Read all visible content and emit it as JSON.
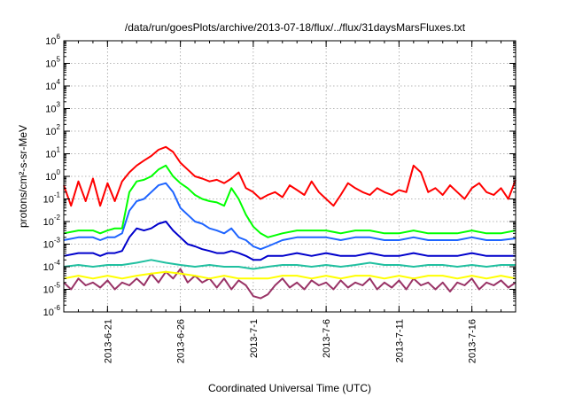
{
  "chart_data": {
    "type": "line",
    "title": "/data/run/goesPlots/archive/2013-07-18/flux/../flux/31daysMarsFluxes.txt",
    "xlabel": "Coordinated Universal Time (UTC)",
    "ylabel": "protons/cm²-s-sr-MeV",
    "yscale": "log",
    "ylim": [
      1e-06,
      1000000.0
    ],
    "xlim": [
      0,
      31
    ],
    "x_unit": "days since 2013-06-18",
    "x_ticks": [
      {
        "x": 3,
        "label": "2013-6-21"
      },
      {
        "x": 8,
        "label": "2013-6-26"
      },
      {
        "x": 13,
        "label": "2013-7-1"
      },
      {
        "x": 18,
        "label": "2013-7-6"
      },
      {
        "x": 23,
        "label": "2013-7-11"
      },
      {
        "x": 28,
        "label": "2013-7-16"
      }
    ],
    "y_ticks": [
      {
        "base": "10",
        "exp": "6",
        "value": 1000000.0
      },
      {
        "base": "10",
        "exp": "5",
        "value": 100000.0
      },
      {
        "base": "10",
        "exp": "4",
        "value": 10000.0
      },
      {
        "base": "10",
        "exp": "3",
        "value": 1000.0
      },
      {
        "base": "10",
        "exp": "2",
        "value": 100.0
      },
      {
        "base": "10",
        "exp": "1",
        "value": 10.0
      },
      {
        "base": "10",
        "exp": "0",
        "value": 1
      },
      {
        "base": "10",
        "exp": "-1",
        "value": 0.1
      },
      {
        "base": "10",
        "exp": "-2",
        "value": 0.01
      },
      {
        "base": "10",
        "exp": "-3",
        "value": 0.001
      },
      {
        "base": "10",
        "exp": "-4",
        "value": 0.0001
      },
      {
        "base": "10",
        "exp": "-5",
        "value": 1e-05
      },
      {
        "base": "10",
        "exp": "-6",
        "value": 1e-06
      }
    ],
    "grid": true,
    "series": [
      {
        "color": "#ff0000",
        "x": [
          0,
          0.5,
          1,
          1.5,
          2,
          2.5,
          3,
          3.5,
          4,
          4.5,
          5,
          5.5,
          6,
          6.5,
          7,
          7.5,
          8,
          8.5,
          9,
          9.5,
          10,
          10.5,
          11,
          11.5,
          12,
          12.5,
          13,
          13.5,
          14,
          14.5,
          15,
          15.5,
          16,
          16.5,
          17,
          17.5,
          18,
          18.5,
          19,
          19.5,
          20,
          20.5,
          21,
          21.5,
          22,
          22.5,
          23,
          23.5,
          24,
          24.5,
          25,
          25.5,
          26,
          26.5,
          27,
          27.5,
          28,
          28.5,
          29,
          29.5,
          30,
          30.5,
          31
        ],
        "y": [
          0.4,
          0.05,
          0.6,
          0.08,
          0.8,
          0.05,
          0.5,
          0.08,
          0.6,
          1.5,
          3,
          5,
          8,
          15,
          20,
          12,
          4,
          2,
          1,
          0.8,
          0.6,
          0.7,
          0.5,
          0.8,
          1.5,
          0.3,
          0.2,
          0.1,
          0.15,
          0.2,
          0.12,
          0.4,
          0.25,
          0.15,
          0.6,
          0.2,
          0.1,
          0.05,
          0.15,
          0.5,
          0.3,
          0.2,
          0.15,
          0.3,
          0.2,
          0.15,
          0.25,
          0.2,
          3,
          1.5,
          0.2,
          0.3,
          0.15,
          0.4,
          0.2,
          0.1,
          0.3,
          0.5,
          0.2,
          0.15,
          0.3,
          0.1,
          0.7
        ]
      },
      {
        "color": "#00ff00",
        "x": [
          0,
          1,
          2,
          2.5,
          3,
          3.5,
          4,
          4.5,
          5,
          5.5,
          6,
          6.5,
          7,
          7.5,
          8,
          8.5,
          9,
          9.5,
          10,
          10.5,
          11,
          11.5,
          12,
          12.5,
          13,
          13.5,
          14,
          15,
          16,
          17,
          18,
          19,
          20,
          21,
          22,
          23,
          24,
          25,
          26,
          27,
          28,
          29,
          30,
          31
        ],
        "y": [
          0.003,
          0.004,
          0.004,
          0.003,
          0.004,
          0.005,
          0.005,
          0.2,
          0.6,
          0.7,
          1,
          2,
          3,
          1,
          0.5,
          0.3,
          0.15,
          0.1,
          0.08,
          0.07,
          0.05,
          0.3,
          0.1,
          0.02,
          0.006,
          0.003,
          0.002,
          0.003,
          0.004,
          0.004,
          0.004,
          0.003,
          0.004,
          0.004,
          0.003,
          0.003,
          0.004,
          0.003,
          0.003,
          0.003,
          0.004,
          0.003,
          0.003,
          0.004
        ]
      },
      {
        "color": "#1e64ff",
        "x": [
          0,
          1,
          2,
          2.5,
          3,
          3.5,
          4,
          4.5,
          5,
          5.5,
          6,
          6.5,
          7,
          7.5,
          8,
          8.5,
          9,
          9.5,
          10,
          10.5,
          11,
          11.5,
          12,
          12.5,
          13,
          13.5,
          14,
          15,
          16,
          17,
          18,
          19,
          20,
          21,
          22,
          23,
          24,
          25,
          26,
          27,
          28,
          29,
          30,
          31
        ],
        "y": [
          0.0015,
          0.002,
          0.002,
          0.0015,
          0.002,
          0.002,
          0.003,
          0.03,
          0.08,
          0.1,
          0.2,
          0.4,
          0.5,
          0.2,
          0.04,
          0.02,
          0.01,
          0.008,
          0.005,
          0.004,
          0.003,
          0.005,
          0.002,
          0.0015,
          0.0008,
          0.0006,
          0.0008,
          0.0015,
          0.002,
          0.002,
          0.002,
          0.0015,
          0.002,
          0.002,
          0.0015,
          0.0015,
          0.002,
          0.0015,
          0.0015,
          0.0015,
          0.002,
          0.0015,
          0.0015,
          0.0018
        ]
      },
      {
        "color": "#0000cc",
        "x": [
          0,
          1,
          2,
          2.5,
          3,
          3.5,
          4,
          4.5,
          5,
          5.5,
          6,
          6.5,
          7,
          7.5,
          8,
          8.5,
          9,
          9.5,
          10,
          10.5,
          11,
          11.5,
          12,
          12.5,
          13,
          13.5,
          14,
          15,
          16,
          17,
          18,
          19,
          20,
          21,
          22,
          23,
          24,
          25,
          26,
          27,
          28,
          29,
          30,
          31
        ],
        "y": [
          0.0003,
          0.0004,
          0.0004,
          0.0003,
          0.0004,
          0.0004,
          0.0005,
          0.002,
          0.005,
          0.004,
          0.005,
          0.008,
          0.01,
          0.004,
          0.002,
          0.001,
          0.0008,
          0.0006,
          0.0005,
          0.0004,
          0.0004,
          0.0005,
          0.0004,
          0.0003,
          0.0002,
          0.0002,
          0.0003,
          0.0003,
          0.0004,
          0.0003,
          0.0004,
          0.0003,
          0.0003,
          0.0004,
          0.0003,
          0.0003,
          0.0004,
          0.0003,
          0.0003,
          0.0003,
          0.0004,
          0.0003,
          0.0003,
          0.0003
        ]
      },
      {
        "color": "#20c0a0",
        "x": [
          0,
          1,
          2,
          3,
          4,
          5,
          6,
          7,
          8,
          9,
          10,
          11,
          12,
          13,
          14,
          15,
          16,
          17,
          18,
          19,
          20,
          21,
          22,
          23,
          24,
          25,
          26,
          27,
          28,
          29,
          30,
          31
        ],
        "y": [
          0.0001,
          0.00012,
          0.0001,
          0.00012,
          0.00012,
          0.00015,
          0.0002,
          0.00015,
          0.00012,
          0.0001,
          0.00012,
          0.0001,
          0.0001,
          8e-05,
          0.0001,
          0.00012,
          0.00012,
          0.0001,
          0.00012,
          0.0001,
          0.00012,
          0.00015,
          0.00012,
          0.00012,
          0.0001,
          0.00012,
          0.00012,
          0.0001,
          0.00012,
          0.0001,
          0.00012,
          0.00012
        ]
      },
      {
        "color": "#ffff00",
        "x": [
          0,
          1,
          2,
          3,
          4,
          5,
          6,
          7,
          8,
          9,
          10,
          11,
          12,
          13,
          14,
          15,
          16,
          17,
          18,
          19,
          20,
          21,
          22,
          23,
          24,
          25,
          26,
          27,
          28,
          29,
          30,
          31
        ],
        "y": [
          3e-05,
          4e-05,
          3e-05,
          4e-05,
          3e-05,
          4e-05,
          5e-05,
          6e-05,
          5e-05,
          4e-05,
          3e-05,
          4e-05,
          3e-05,
          3e-05,
          3e-05,
          4e-05,
          4e-05,
          3e-05,
          4e-05,
          3e-05,
          4e-05,
          4e-05,
          3e-05,
          4e-05,
          3e-05,
          4e-05,
          4e-05,
          3e-05,
          4e-05,
          3e-05,
          4e-05,
          3e-05
        ]
      },
      {
        "color": "#993366",
        "x": [
          0,
          0.5,
          1,
          1.5,
          2,
          2.5,
          3,
          3.5,
          4,
          4.5,
          5,
          5.5,
          6,
          6.5,
          7,
          7.5,
          8,
          8.5,
          9,
          9.5,
          10,
          10.5,
          11,
          11.5,
          12,
          12.5,
          13,
          13.5,
          14,
          14.5,
          15,
          15.5,
          16,
          16.5,
          17,
          17.5,
          18,
          18.5,
          19,
          19.5,
          20,
          20.5,
          21,
          21.5,
          22,
          22.5,
          23,
          23.5,
          24,
          24.5,
          25,
          25.5,
          26,
          26.5,
          27,
          27.5,
          28,
          28.5,
          29,
          29.5,
          30,
          30.5,
          31
        ],
        "y": [
          2e-05,
          1e-05,
          3e-05,
          1.5e-05,
          2e-05,
          1.2e-05,
          2.5e-05,
          1e-05,
          2e-05,
          1.5e-05,
          3e-05,
          1.5e-05,
          5e-05,
          2e-05,
          6e-05,
          3e-05,
          8e-05,
          2e-05,
          4e-05,
          2e-05,
          3e-05,
          1.2e-05,
          3e-05,
          1e-05,
          2.5e-05,
          1.5e-05,
          5e-06,
          4e-06,
          6e-06,
          1.5e-05,
          3e-05,
          1.2e-05,
          2e-05,
          1e-05,
          2.5e-05,
          1.5e-05,
          2e-05,
          1e-05,
          2.5e-05,
          1.2e-05,
          2e-05,
          1.5e-05,
          3e-05,
          1e-05,
          2e-05,
          1.2e-05,
          2.5e-05,
          1e-05,
          3e-05,
          1.5e-05,
          2e-05,
          1e-05,
          2e-05,
          8e-06,
          2e-05,
          1.5e-05,
          3e-05,
          1e-05,
          2e-05,
          1.5e-05,
          2.5e-05,
          1.2e-05,
          2e-05
        ]
      }
    ]
  }
}
